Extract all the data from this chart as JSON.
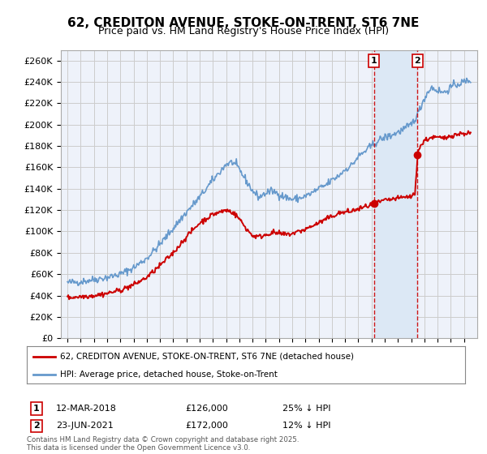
{
  "title": "62, CREDITON AVENUE, STOKE-ON-TRENT, ST6 7NE",
  "subtitle": "Price paid vs. HM Land Registry's House Price Index (HPI)",
  "legend_label_red": "62, CREDITON AVENUE, STOKE-ON-TRENT, ST6 7NE (detached house)",
  "legend_label_blue": "HPI: Average price, detached house, Stoke-on-Trent",
  "annotation1": {
    "num": "1",
    "date": "12-MAR-2018",
    "price": "£126,000",
    "hpi": "25% ↓ HPI",
    "x_year": 2018.19
  },
  "annotation2": {
    "num": "2",
    "date": "23-JUN-2021",
    "price": "£172,000",
    "hpi": "12% ↓ HPI",
    "x_year": 2021.48
  },
  "footer": "Contains HM Land Registry data © Crown copyright and database right 2025.\nThis data is licensed under the Open Government Licence v3.0.",
  "ylim": [
    0,
    270000
  ],
  "yticks": [
    0,
    20000,
    40000,
    60000,
    80000,
    100000,
    120000,
    140000,
    160000,
    180000,
    200000,
    220000,
    240000,
    260000
  ],
  "xlim": [
    1994.5,
    2026.0
  ],
  "red_color": "#cc0000",
  "blue_color": "#6699cc",
  "shade_color": "#dce8f5",
  "vline_color": "#cc0000",
  "grid_color": "#cccccc",
  "bg_color": "#eef2fa"
}
